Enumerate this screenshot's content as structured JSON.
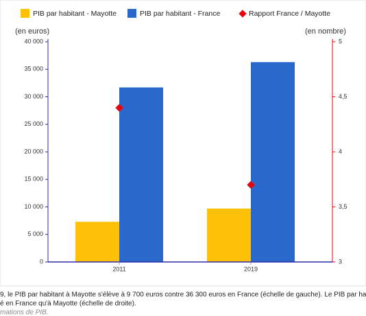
{
  "chart_data": {
    "type": "bar",
    "y_label": "(en euros)",
    "y2_label": "(en nombre)",
    "categories": [
      "2011",
      "2019"
    ],
    "series": [
      {
        "name": "PIB par habitant - Mayotte",
        "color": "#ffc107",
        "type": "bar",
        "values": [
          7300,
          9700
        ]
      },
      {
        "name": "PIB par habitant - France",
        "color": "#2a68cc",
        "type": "bar",
        "values": [
          31700,
          36300
        ]
      },
      {
        "name": "Rapport France / Mayotte",
        "color": "#e8000b",
        "type": "scatter",
        "axis": "y2",
        "values": [
          4.4,
          3.7
        ]
      }
    ],
    "ylim": [
      0,
      40000
    ],
    "yticks": [
      0,
      {
        "value": 5000,
        "label": "5 000"
      },
      {
        "value": 10000,
        "label": "10 000"
      },
      {
        "value": 15000,
        "label": "15 000"
      },
      {
        "value": 20000,
        "label": "20 000"
      },
      {
        "value": 25000,
        "label": "25 000"
      },
      {
        "value": 30000,
        "label": "30 000"
      },
      {
        "value": 35000,
        "label": "35 000"
      },
      {
        "value": 40000,
        "label": "40 000"
      }
    ],
    "y2lim": [
      3,
      5
    ],
    "y2ticks": [
      3,
      {
        "value": 3.5,
        "label": "3,5"
      },
      4,
      {
        "value": 4.5,
        "label": "4,5"
      },
      5
    ],
    "left_axis_color": "#2a2aa8",
    "right_axis_color": "#e8000b",
    "caption": [
      "9, le PIB par habitant à Mayotte s'élève à 9 700 euros contre 36 300 euros en France (échelle de gauche). Le PIB par ha",
      "é en France qu'à Mayotte (échelle de droite).",
      "mations de PIB."
    ]
  }
}
